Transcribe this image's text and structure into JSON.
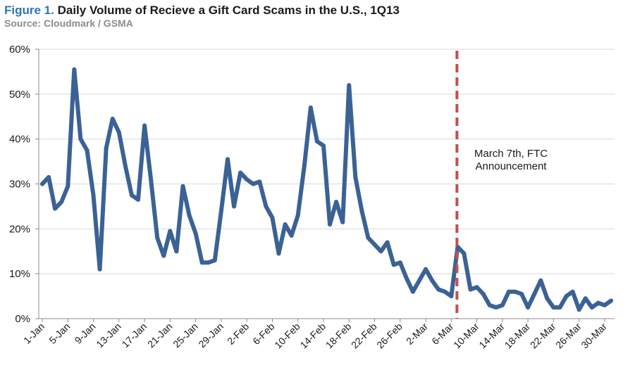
{
  "header": {
    "figure_label": "Figure 1.",
    "title": "Daily Volume of Recieve a Gift Card Scams in the U.S., 1Q13",
    "source": "Source: Cloudmark / GSMA"
  },
  "colors": {
    "series": "#3b6295",
    "marker": "#c0504d",
    "grid": "#d9d9d9",
    "figure_label": "#2f75b5",
    "source": "#8c8c8c"
  },
  "chart_data": {
    "type": "line",
    "title": "Daily Volume of Recieve a Gift Card Scams in the U.S., 1Q13",
    "xlabel": "",
    "ylabel": "",
    "ylim": [
      0,
      60
    ],
    "y_ticks": [
      0,
      10,
      20,
      30,
      40,
      50,
      60
    ],
    "y_tick_labels": [
      "0%",
      "10%",
      "20%",
      "30%",
      "40%",
      "50%",
      "60%"
    ],
    "x_tick_labels": [
      "1-Jan",
      "5-Jan",
      "9-Jan",
      "13-Jan",
      "17-Jan",
      "21-Jan",
      "25-Jan",
      "29-Jan",
      "2-Feb",
      "6-Feb",
      "10-Feb",
      "14-Feb",
      "18-Feb",
      "22-Feb",
      "26-Feb",
      "2-Mar",
      "6-Mar",
      "10-Mar",
      "14-Mar",
      "18-Mar",
      "22-Mar",
      "26-Mar",
      "30-Mar"
    ],
    "x_tick_every_days": 4,
    "grid": "horizontal",
    "legend": "none",
    "annotation": {
      "text_lines": [
        "March 7th, FTC",
        "Announcement"
      ],
      "at_date": "7-Mar"
    },
    "series": [
      {
        "values": [
          30,
          31.5,
          24.5,
          26,
          29.5,
          55.5,
          40,
          37.5,
          27.5,
          11,
          38,
          44.5,
          41.5,
          34,
          27.5,
          26.5,
          43,
          31,
          18,
          14,
          19.5,
          15,
          29.5,
          23,
          19,
          12.5,
          12.5,
          13,
          24,
          35.5,
          25,
          32.5,
          31,
          30,
          30.5,
          25,
          22.5,
          14.5,
          21,
          18.5,
          23,
          34,
          47,
          39.5,
          38.5,
          21,
          26,
          21.5,
          52,
          31.5,
          24,
          18,
          16.5,
          15,
          17,
          12,
          12.5,
          9,
          6,
          8.5,
          11,
          8.5,
          6.5,
          6,
          5,
          16,
          14.5,
          6.5,
          7,
          5.5,
          3,
          2.5,
          3,
          6,
          6,
          5.5,
          2.5,
          5.5,
          8.5,
          4.5,
          2.5,
          2.5,
          5,
          6,
          2,
          4.5,
          2.5,
          3.5,
          3,
          4
        ]
      }
    ]
  }
}
